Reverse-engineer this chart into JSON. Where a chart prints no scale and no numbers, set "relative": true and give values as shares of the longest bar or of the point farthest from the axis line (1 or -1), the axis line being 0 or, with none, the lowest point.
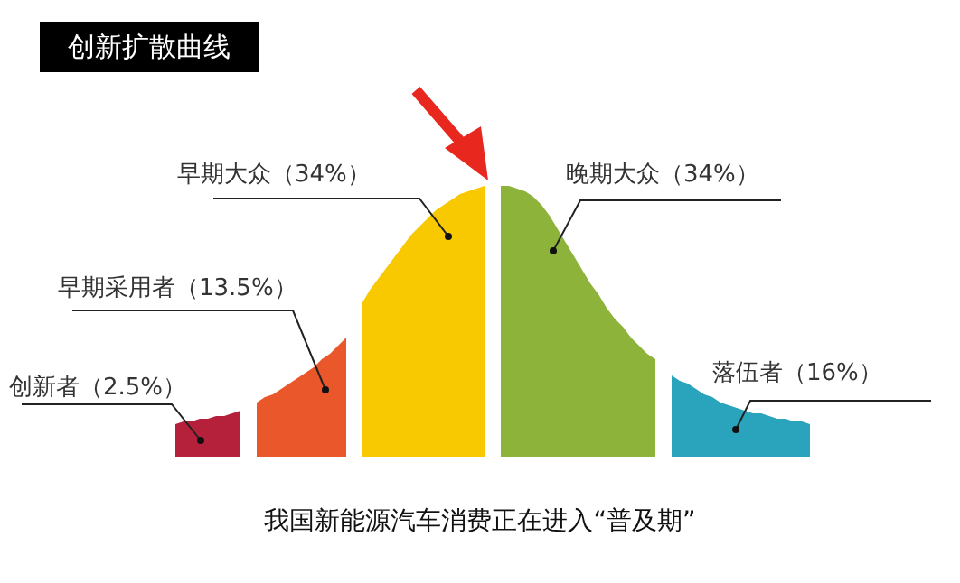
{
  "chart_data": {
    "type": "area",
    "title": "创新扩散曲线",
    "relative": true,
    "legend": false,
    "marker": "none",
    "annotations": [
      "我国新能源汽车消费正在进入“普及期”"
    ],
    "categories": [
      null,
      null,
      null,
      null,
      null,
      null,
      null,
      null,
      null,
      null,
      null,
      null,
      null,
      null,
      null,
      null,
      null,
      null,
      null,
      null,
      null,
      null,
      null,
      null,
      null,
      null,
      null,
      null,
      null,
      null,
      null,
      null,
      null,
      null,
      null,
      null,
      null,
      null,
      null,
      null,
      null,
      null,
      null,
      null,
      null,
      null,
      null,
      null,
      null,
      null,
      null,
      null,
      null,
      null,
      null,
      null,
      null,
      null,
      null,
      null,
      null,
      null,
      null,
      null,
      null,
      null,
      null,
      null,
      null,
      null,
      null,
      null,
      null,
      null,
      null,
      null,
      null,
      null,
      null
    ],
    "series": [
      {
        "name": "创新者（2.5%）",
        "color": "#b5203a",
        "values": [
          0.12,
          0.13,
          0.13,
          0.14,
          0.14,
          0.15,
          0.15,
          0.16,
          0.17,
          null,
          null,
          null,
          null,
          null,
          null,
          null,
          null,
          null,
          null,
          null,
          null,
          null,
          null,
          null,
          null,
          null,
          null,
          null,
          null,
          null,
          null,
          null,
          null,
          null,
          null,
          null,
          null,
          null,
          null,
          null,
          null,
          null,
          null,
          null,
          null,
          null,
          null,
          null,
          null,
          null,
          null,
          null,
          null,
          null,
          null,
          null,
          null,
          null,
          null,
          null,
          null,
          null,
          null,
          null,
          null,
          null,
          null,
          null,
          null,
          null,
          null,
          null,
          null,
          null,
          null,
          null,
          null,
          null,
          null
        ]
      },
      {
        "name": "早期采用者（13.5%）",
        "color": "#e9572b",
        "values": [
          null,
          null,
          null,
          null,
          null,
          null,
          null,
          null,
          null,
          null,
          0.2,
          0.22,
          0.23,
          0.25,
          0.27,
          0.29,
          0.31,
          0.33,
          0.36,
          0.38,
          0.41,
          0.44,
          null,
          null,
          null,
          null,
          null,
          null,
          null,
          null,
          null,
          null,
          null,
          null,
          null,
          null,
          null,
          null,
          null,
          null,
          null,
          null,
          null,
          null,
          null,
          null,
          null,
          null,
          null,
          null,
          null,
          null,
          null,
          null,
          null,
          null,
          null,
          null,
          null,
          null,
          null,
          null,
          null,
          null,
          null,
          null,
          null,
          null,
          null,
          null,
          null,
          null,
          null,
          null,
          null,
          null,
          null,
          null,
          null
        ]
      },
      {
        "name": "早期大众（34%）",
        "color": "#f8c800",
        "values": [
          null,
          null,
          null,
          null,
          null,
          null,
          null,
          null,
          null,
          null,
          null,
          null,
          null,
          null,
          null,
          null,
          null,
          null,
          null,
          null,
          null,
          null,
          null,
          0.57,
          0.62,
          0.66,
          0.7,
          0.74,
          0.78,
          0.82,
          0.85,
          0.88,
          0.91,
          0.93,
          0.95,
          0.97,
          0.98,
          0.99,
          1,
          null,
          null,
          null,
          null,
          null,
          null,
          null,
          null,
          null,
          null,
          null,
          null,
          null,
          null,
          null,
          null,
          null,
          null,
          null,
          null,
          null,
          null,
          null,
          null,
          null,
          null,
          null,
          null,
          null,
          null,
          null,
          null,
          null,
          null,
          null,
          null,
          null,
          null,
          null,
          null
        ]
      },
      {
        "name": "晚期大众（34%）",
        "color": "#8db33b",
        "values": [
          null,
          null,
          null,
          null,
          null,
          null,
          null,
          null,
          null,
          null,
          null,
          null,
          null,
          null,
          null,
          null,
          null,
          null,
          null,
          null,
          null,
          null,
          null,
          null,
          null,
          null,
          null,
          null,
          null,
          null,
          null,
          null,
          null,
          null,
          null,
          null,
          null,
          null,
          null,
          null,
          1,
          1,
          0.99,
          0.98,
          0.96,
          0.93,
          0.89,
          0.84,
          0.79,
          0.74,
          0.69,
          0.64,
          0.6,
          0.55,
          0.51,
          0.48,
          0.44,
          0.41,
          0.38,
          0.36,
          null,
          null,
          null,
          null,
          null,
          null,
          null,
          null,
          null,
          null,
          null,
          null,
          null,
          null,
          null,
          null,
          null,
          null,
          null
        ]
      },
      {
        "name": "落伍者（16%）",
        "color": "#2aa4bd",
        "values": [
          null,
          null,
          null,
          null,
          null,
          null,
          null,
          null,
          null,
          null,
          null,
          null,
          null,
          null,
          null,
          null,
          null,
          null,
          null,
          null,
          null,
          null,
          null,
          null,
          null,
          null,
          null,
          null,
          null,
          null,
          null,
          null,
          null,
          null,
          null,
          null,
          null,
          null,
          null,
          null,
          null,
          null,
          null,
          null,
          null,
          null,
          null,
          null,
          null,
          null,
          null,
          null,
          null,
          null,
          null,
          null,
          null,
          null,
          null,
          null,
          null,
          0.3,
          0.28,
          0.27,
          0.25,
          0.23,
          0.22,
          0.2,
          0.19,
          0.18,
          0.17,
          0.16,
          0.16,
          0.15,
          0.14,
          0.14,
          0.13,
          0.13,
          0.12
        ]
      }
    ]
  }
}
